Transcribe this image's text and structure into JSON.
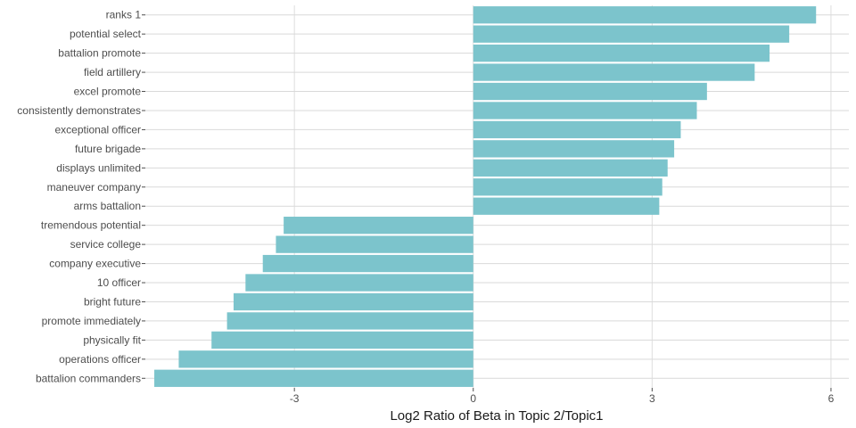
{
  "chart_data": {
    "type": "bar",
    "orientation": "horizontal",
    "title": "",
    "xlabel": "Log2 Ratio of Beta in Topic 2/Topic1",
    "ylabel": "",
    "xlim": [
      -5.5,
      6.3
    ],
    "xticks": [
      -3,
      0,
      3,
      6
    ],
    "grid": true,
    "bar_color": "#7cc4cc",
    "categories": [
      "ranks 1",
      "potential select",
      "battalion promote",
      "field artillery",
      "excel promote",
      "consistently demonstrates",
      "exceptional officer",
      "future brigade",
      "displays unlimited",
      "maneuver company",
      "arms battalion",
      "tremendous potential",
      "service college",
      "company executive",
      "10 officer",
      "bright future",
      "promote immediately",
      "physically fit",
      "operations officer",
      "battalion commanders"
    ],
    "values": [
      5.75,
      5.3,
      4.97,
      4.72,
      3.92,
      3.75,
      3.48,
      3.37,
      3.26,
      3.17,
      3.12,
      -3.18,
      -3.31,
      -3.53,
      -3.82,
      -4.02,
      -4.13,
      -4.39,
      -4.94,
      -5.35
    ]
  }
}
